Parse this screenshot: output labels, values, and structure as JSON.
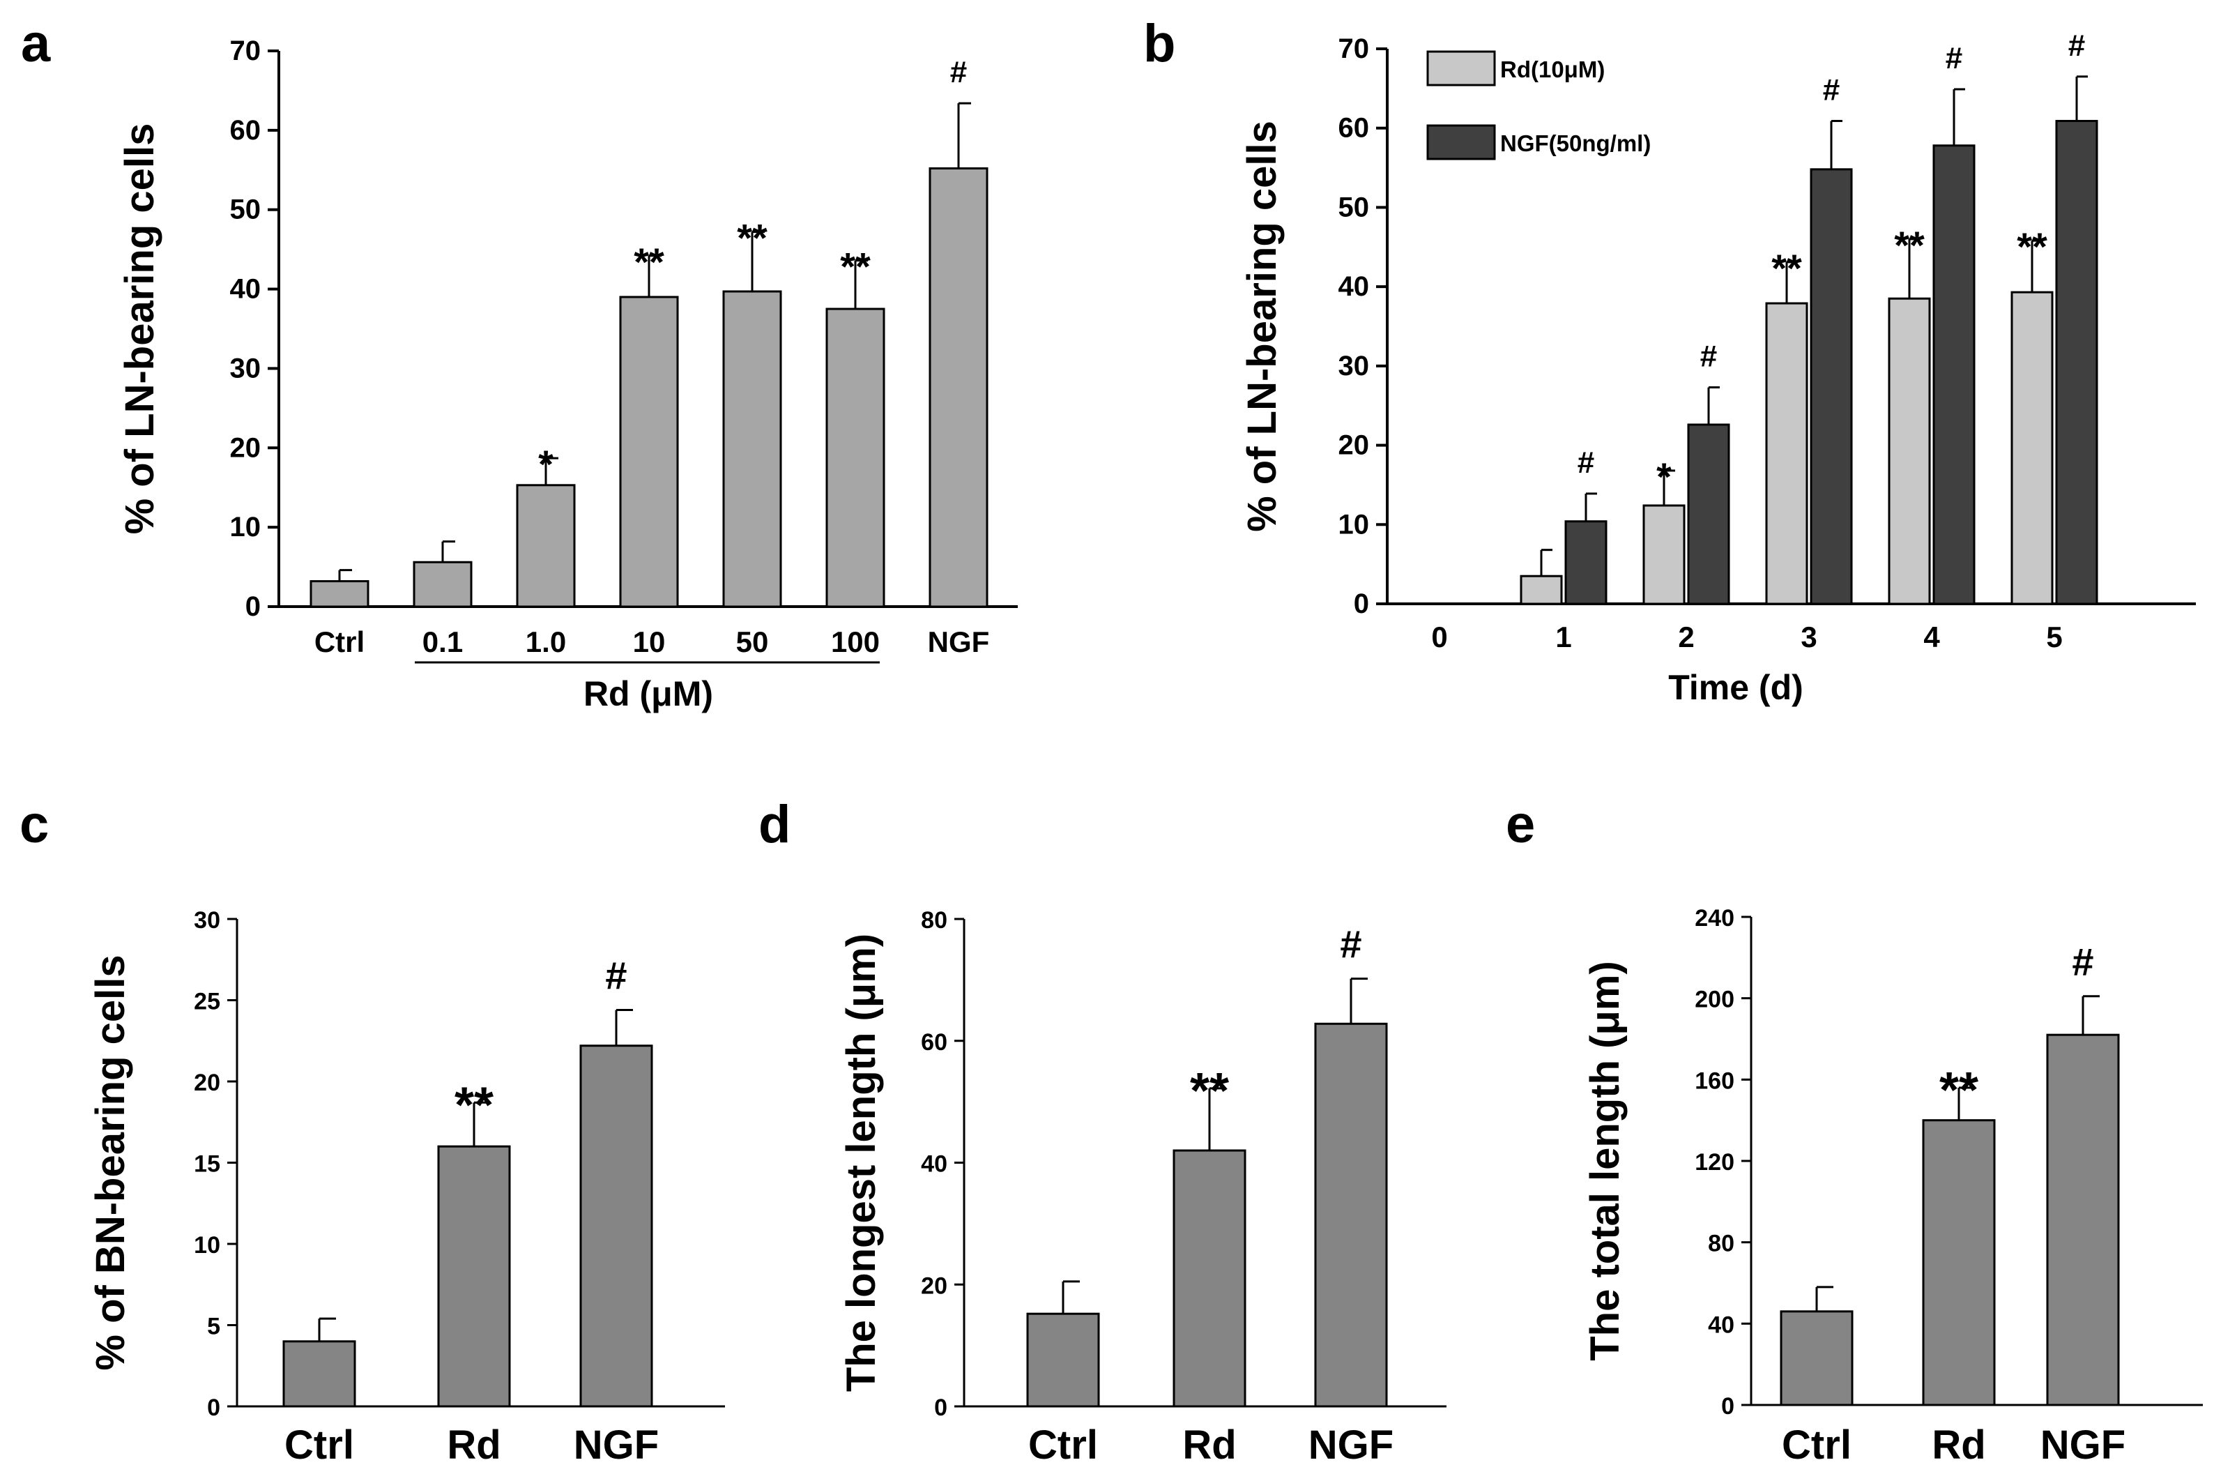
{
  "chart_data": [
    {
      "panel": "a",
      "type": "bar",
      "ylabel": "% of LN-bearing cells",
      "xlabel": "Rd (μM)",
      "ylim": [
        0,
        70
      ],
      "yticks": [
        "0",
        "10",
        "20",
        "30",
        "40",
        "50",
        "60",
        "70"
      ],
      "categories": [
        "Ctrl",
        "0.1",
        "1.0",
        "10",
        "50",
        "100",
        "NGF"
      ],
      "values": [
        3.2,
        5.6,
        15.3,
        39.0,
        39.7,
        37.5,
        55.2
      ],
      "errors": [
        1.4,
        2.6,
        3.4,
        5.2,
        7.5,
        6.1,
        8.2
      ],
      "annotations": [
        "",
        "",
        "*",
        "**",
        "**",
        "**",
        "#"
      ],
      "bar_color": "#a6a6a6"
    },
    {
      "panel": "b",
      "type": "bar",
      "ylabel": "% of LN-bearing cells",
      "xlabel": "Time (d)",
      "ylim": [
        0,
        70
      ],
      "yticks": [
        "0",
        "10",
        "20",
        "30",
        "40",
        "50",
        "60",
        "70"
      ],
      "categories": [
        "0",
        "1",
        "2",
        "3",
        "4",
        "5"
      ],
      "legend_position": "top-left",
      "series": [
        {
          "name": "Rd(10μM)",
          "color": "#c8c8c8",
          "values": [
            0,
            3.5,
            12.4,
            37.9,
            38.5,
            39.3
          ],
          "errors": [
            0,
            3.3,
            4.4,
            5.2,
            7.5,
            6.5
          ],
          "annotations": [
            "",
            "",
            "*",
            "**",
            "**",
            "**"
          ]
        },
        {
          "name": "NGF(50ng/ml)",
          "color": "#404040",
          "values": [
            0,
            10.4,
            22.6,
            54.8,
            57.8,
            60.9
          ],
          "errors": [
            0,
            3.5,
            4.7,
            6.1,
            7.1,
            5.6
          ],
          "annotations": [
            "",
            "#",
            "#",
            "#",
            "#",
            "#"
          ]
        }
      ]
    },
    {
      "panel": "c",
      "type": "bar",
      "ylabel": "% of BN-bearing cells",
      "ylim": [
        0,
        30
      ],
      "yticks": [
        "0",
        "5",
        "10",
        "15",
        "20",
        "25",
        "30"
      ],
      "categories": [
        "Ctrl",
        "Rd",
        "NGF"
      ],
      "values": [
        4.0,
        16.0,
        22.2
      ],
      "errors": [
        1.4,
        2.7,
        2.2
      ],
      "annotations": [
        "",
        "**",
        "#"
      ],
      "bar_color": "#858585"
    },
    {
      "panel": "d",
      "type": "bar",
      "ylabel": "The longest length (μm)",
      "ylim": [
        0,
        80
      ],
      "yticks": [
        "0",
        "20",
        "40",
        "60",
        "80"
      ],
      "categories": [
        "Ctrl",
        "Rd",
        "NGF"
      ],
      "values": [
        15.2,
        42.0,
        62.8
      ],
      "errors": [
        5.3,
        10.2,
        7.4
      ],
      "annotations": [
        "",
        "**",
        "#"
      ],
      "bar_color": "#858585"
    },
    {
      "panel": "e",
      "type": "bar",
      "ylabel": "The total length (μm)",
      "ylim": [
        0,
        240
      ],
      "yticks": [
        "0",
        "40",
        "80",
        "120",
        "160",
        "200",
        "240"
      ],
      "categories": [
        "Ctrl",
        "Rd",
        "NGF"
      ],
      "values": [
        46,
        140,
        182
      ],
      "errors": [
        12,
        16,
        19
      ],
      "annotations": [
        "",
        "**",
        "#"
      ],
      "bar_color": "#858585"
    }
  ]
}
